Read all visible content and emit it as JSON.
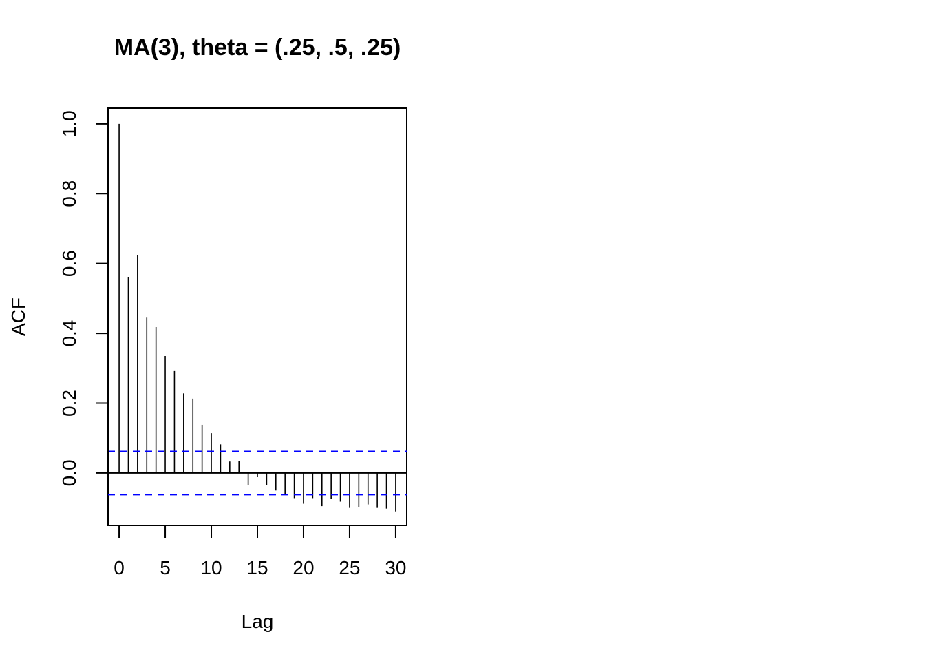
{
  "chart_data": {
    "type": "bar",
    "title": "MA(3), theta = (.25, .5, .25)",
    "xlabel": "Lag",
    "ylabel": "ACF",
    "xlim": [
      -1.2,
      31.2
    ],
    "ylim": [
      -0.15,
      1.045
    ],
    "x_ticks": [
      "0",
      "5",
      "10",
      "15",
      "20",
      "25",
      "30"
    ],
    "y_ticks": [
      "0.0",
      "0.2",
      "0.4",
      "0.6",
      "0.8",
      "1.0"
    ],
    "lags": [
      0,
      1,
      2,
      3,
      4,
      5,
      6,
      7,
      8,
      9,
      10,
      11,
      12,
      13,
      14,
      15,
      16,
      17,
      18,
      19,
      20,
      21,
      22,
      23,
      24,
      25,
      26,
      27,
      28,
      29,
      30
    ],
    "values": [
      1.0,
      0.56,
      0.625,
      0.445,
      0.418,
      0.335,
      0.292,
      0.228,
      0.213,
      0.138,
      0.114,
      0.082,
      0.033,
      0.035,
      -0.035,
      -0.012,
      -0.035,
      -0.05,
      -0.06,
      -0.072,
      -0.088,
      -0.072,
      -0.095,
      -0.075,
      -0.082,
      -0.1,
      -0.098,
      -0.09,
      -0.1,
      -0.102,
      -0.11
    ],
    "confidence_bound": 0.062,
    "confidence_color": "#0000ff",
    "grid": false,
    "legend": "none"
  }
}
